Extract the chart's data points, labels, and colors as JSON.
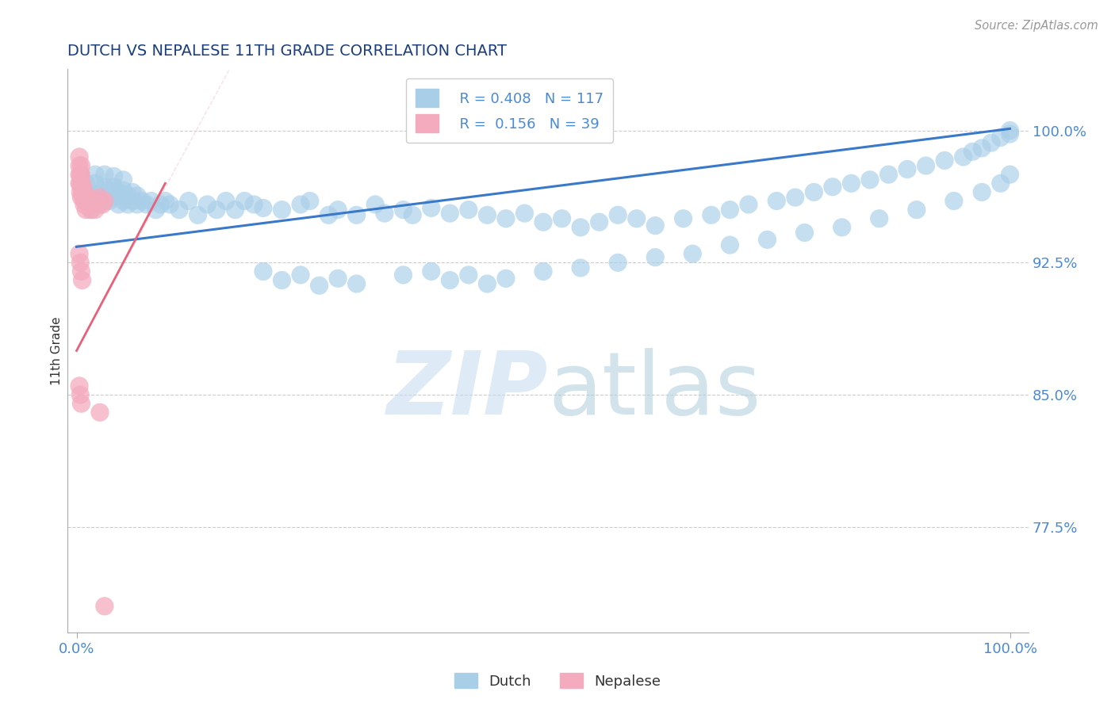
{
  "title": "DUTCH VS NEPALESE 11TH GRADE CORRELATION CHART",
  "source_text": "Source: ZipAtlas.com",
  "ylabel": "11th Grade",
  "watermark_zip": "ZIP",
  "watermark_atlas": "atlas",
  "xlim": [
    -0.01,
    1.02
  ],
  "ylim": [
    0.715,
    1.035
  ],
  "yticks": [
    0.775,
    0.85,
    0.925,
    1.0
  ],
  "ytick_labels": [
    "77.5%",
    "85.0%",
    "92.5%",
    "100.0%"
  ],
  "xtick_labels": [
    "0.0%",
    "100.0%"
  ],
  "xticks": [
    0.0,
    1.0
  ],
  "dutch_color": "#A8CEE8",
  "nepalese_color": "#F4ABBE",
  "dutch_line_color": "#3A78C9",
  "nepalese_line_color": "#E8607A",
  "R_dutch": 0.408,
  "N_dutch": 117,
  "R_nepalese": 0.156,
  "N_nepalese": 39,
  "title_color": "#1A3E7E",
  "axis_color": "#4A8AD4",
  "grid_color": "#CCCCCC",
  "background_color": "#FFFFFF",
  "dutch_line_x": [
    0.0,
    1.0
  ],
  "dutch_line_y": [
    0.934,
    1.001
  ],
  "nepalese_line_x": [
    0.0,
    0.095
  ],
  "nepalese_line_y": [
    0.875,
    0.97
  ],
  "dutch_scatter_x": [
    0.005,
    0.01,
    0.01,
    0.015,
    0.015,
    0.02,
    0.02,
    0.02,
    0.025,
    0.025,
    0.03,
    0.03,
    0.03,
    0.035,
    0.035,
    0.04,
    0.04,
    0.04,
    0.045,
    0.045,
    0.05,
    0.05,
    0.05,
    0.055,
    0.055,
    0.06,
    0.06,
    0.065,
    0.065,
    0.07,
    0.075,
    0.08,
    0.085,
    0.09,
    0.095,
    0.1,
    0.11,
    0.12,
    0.13,
    0.14,
    0.15,
    0.16,
    0.17,
    0.18,
    0.19,
    0.2,
    0.22,
    0.24,
    0.25,
    0.27,
    0.28,
    0.3,
    0.32,
    0.33,
    0.35,
    0.36,
    0.38,
    0.4,
    0.42,
    0.44,
    0.46,
    0.48,
    0.5,
    0.52,
    0.54,
    0.56,
    0.58,
    0.6,
    0.62,
    0.65,
    0.68,
    0.7,
    0.72,
    0.75,
    0.77,
    0.79,
    0.81,
    0.83,
    0.85,
    0.87,
    0.89,
    0.91,
    0.93,
    0.95,
    0.96,
    0.97,
    0.98,
    0.99,
    1.0,
    1.0,
    0.2,
    0.22,
    0.24,
    0.26,
    0.28,
    0.3,
    0.35,
    0.38,
    0.4,
    0.42,
    0.44,
    0.46,
    0.5,
    0.54,
    0.58,
    0.62,
    0.66,
    0.7,
    0.74,
    0.78,
    0.82,
    0.86,
    0.9,
    0.94,
    0.97,
    0.99,
    1.0
  ],
  "dutch_scatter_y": [
    0.97,
    0.96,
    0.97,
    0.955,
    0.965,
    0.96,
    0.97,
    0.975,
    0.958,
    0.965,
    0.962,
    0.968,
    0.975,
    0.96,
    0.966,
    0.962,
    0.968,
    0.974,
    0.958,
    0.965,
    0.96,
    0.966,
    0.972,
    0.958,
    0.963,
    0.96,
    0.965,
    0.958,
    0.963,
    0.96,
    0.958,
    0.96,
    0.955,
    0.958,
    0.96,
    0.958,
    0.955,
    0.96,
    0.952,
    0.958,
    0.955,
    0.96,
    0.955,
    0.96,
    0.958,
    0.956,
    0.955,
    0.958,
    0.96,
    0.952,
    0.955,
    0.952,
    0.958,
    0.953,
    0.955,
    0.952,
    0.956,
    0.953,
    0.955,
    0.952,
    0.95,
    0.953,
    0.948,
    0.95,
    0.945,
    0.948,
    0.952,
    0.95,
    0.946,
    0.95,
    0.952,
    0.955,
    0.958,
    0.96,
    0.962,
    0.965,
    0.968,
    0.97,
    0.972,
    0.975,
    0.978,
    0.98,
    0.983,
    0.985,
    0.988,
    0.99,
    0.993,
    0.996,
    1.0,
    0.998,
    0.92,
    0.915,
    0.918,
    0.912,
    0.916,
    0.913,
    0.918,
    0.92,
    0.915,
    0.918,
    0.913,
    0.916,
    0.92,
    0.922,
    0.925,
    0.928,
    0.93,
    0.935,
    0.938,
    0.942,
    0.945,
    0.95,
    0.955,
    0.96,
    0.965,
    0.97,
    0.975
  ],
  "nepalese_scatter_x": [
    0.003,
    0.003,
    0.003,
    0.003,
    0.004,
    0.004,
    0.004,
    0.005,
    0.005,
    0.005,
    0.005,
    0.006,
    0.006,
    0.007,
    0.007,
    0.008,
    0.008,
    0.009,
    0.01,
    0.01,
    0.012,
    0.013,
    0.015,
    0.016,
    0.018,
    0.02,
    0.022,
    0.025,
    0.028,
    0.03,
    0.003,
    0.004,
    0.005,
    0.006,
    0.003,
    0.004,
    0.005,
    0.025,
    0.03
  ],
  "nepalese_scatter_y": [
    0.97,
    0.975,
    0.98,
    0.985,
    0.965,
    0.97,
    0.975,
    0.962,
    0.968,
    0.975,
    0.98,
    0.965,
    0.97,
    0.962,
    0.968,
    0.958,
    0.965,
    0.96,
    0.955,
    0.962,
    0.958,
    0.962,
    0.96,
    0.955,
    0.958,
    0.955,
    0.96,
    0.962,
    0.958,
    0.96,
    0.93,
    0.925,
    0.92,
    0.915,
    0.855,
    0.85,
    0.845,
    0.84,
    0.73
  ]
}
